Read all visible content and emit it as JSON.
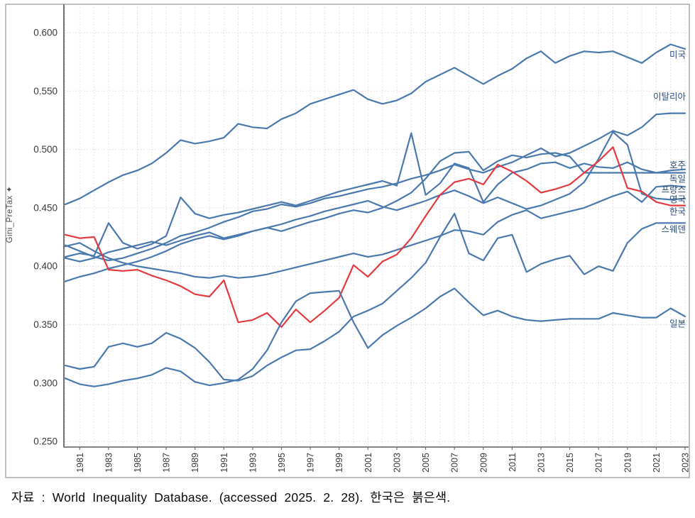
{
  "figure": {
    "caption": "자료 : World Inequality Database. (accessed 2025. 2. 28). 한국은 붉은색."
  },
  "chart_data": {
    "type": "line",
    "title": "",
    "xlabel": "",
    "ylabel": "Gini_PreTax ✦",
    "x_start": 1980,
    "x_end": 2023,
    "x_tick_years": [
      1981,
      1983,
      1985,
      1987,
      1989,
      1991,
      1993,
      1995,
      1997,
      1999,
      2001,
      2003,
      2005,
      2007,
      2009,
      2011,
      2013,
      2015,
      2017,
      2019,
      2021,
      2023
    ],
    "y_ticks": [
      "0.600",
      "0.550",
      "0.500",
      "0.450",
      "0.400",
      "0.350",
      "0.300",
      "0.250"
    ],
    "y_tick_values": [
      0.6,
      0.55,
      0.5,
      0.45,
      0.4,
      0.35,
      0.3,
      0.25
    ],
    "ylim": [
      0.25,
      0.615
    ],
    "grid": true,
    "legend_position": "inline-right-labels",
    "note": "한국은 붉은색",
    "colors": {
      "line_default": "#4b79ae",
      "line_korea": "#e23a3f",
      "series_label_text": "#2e4d7b",
      "axis_line": "#737373",
      "tick_text": "#3a3a3a",
      "grid_vertical": "#d6dcea",
      "grid_horizontal": "#e2d6d6",
      "figure_border": "#a0a4aa"
    },
    "series": [
      {
        "name": "미국",
        "color": "#4b79ae",
        "label_y": 0.581,
        "values": [
          0.453,
          0.458,
          0.465,
          0.472,
          0.478,
          0.482,
          0.488,
          0.497,
          0.508,
          0.505,
          0.507,
          0.51,
          0.522,
          0.519,
          0.518,
          0.526,
          0.531,
          0.539,
          0.543,
          0.547,
          0.551,
          0.543,
          0.539,
          0.542,
          0.548,
          0.558,
          0.564,
          0.57,
          0.563,
          0.556,
          0.563,
          0.569,
          0.578,
          0.584,
          0.574,
          0.58,
          0.584,
          0.583,
          0.584,
          0.579,
          0.574,
          0.583,
          0.59,
          0.586
        ]
      },
      {
        "name": "이탈리아",
        "color": "#4b79ae",
        "label_y": 0.545,
        "values": [
          0.418,
          0.413,
          0.408,
          0.405,
          0.407,
          0.411,
          0.415,
          0.42,
          0.426,
          0.429,
          0.433,
          0.438,
          0.442,
          0.447,
          0.449,
          0.453,
          0.451,
          0.454,
          0.458,
          0.46,
          0.463,
          0.466,
          0.468,
          0.471,
          0.475,
          0.478,
          0.482,
          0.487,
          0.483,
          0.48,
          0.485,
          0.489,
          0.495,
          0.501,
          0.494,
          0.497,
          0.503,
          0.509,
          0.516,
          0.512,
          0.519,
          0.53,
          0.531,
          0.531
        ]
      },
      {
        "name": "호주",
        "color": "#4b79ae",
        "label_y": 0.4865,
        "values": [
          0.408,
          0.411,
          0.409,
          0.437,
          0.42,
          0.415,
          0.419,
          0.426,
          0.459,
          0.445,
          0.441,
          0.444,
          0.446,
          0.449,
          0.452,
          0.455,
          0.452,
          0.456,
          0.46,
          0.464,
          0.467,
          0.47,
          0.473,
          0.469,
          0.514,
          0.461,
          0.471,
          0.488,
          0.484,
          0.455,
          0.47,
          0.48,
          0.483,
          0.488,
          0.489,
          0.484,
          0.488,
          0.485,
          0.484,
          0.489,
          0.483,
          0.48,
          0.482,
          0.483
        ]
      },
      {
        "name": "독일",
        "color": "#4b79ae",
        "label_y": 0.4745,
        "values": [
          0.407,
          0.404,
          0.407,
          0.412,
          0.415,
          0.418,
          0.421,
          0.418,
          0.422,
          0.426,
          0.429,
          0.424,
          0.427,
          0.43,
          0.433,
          0.43,
          0.434,
          0.438,
          0.441,
          0.445,
          0.448,
          0.446,
          0.45,
          0.456,
          0.463,
          0.475,
          0.49,
          0.497,
          0.498,
          0.482,
          0.49,
          0.495,
          0.493,
          0.496,
          0.497,
          0.494,
          0.48,
          0.48,
          0.48,
          0.48,
          0.48,
          0.48,
          0.48,
          0.48
        ]
      },
      {
        "name": "프랑스",
        "color": "#4b79ae",
        "label_y": 0.4655,
        "values": [
          0.417,
          0.42,
          0.413,
          0.407,
          0.403,
          0.4,
          0.398,
          0.396,
          0.394,
          0.391,
          0.39,
          0.392,
          0.39,
          0.391,
          0.393,
          0.396,
          0.399,
          0.402,
          0.405,
          0.408,
          0.411,
          0.408,
          0.41,
          0.414,
          0.418,
          0.422,
          0.426,
          0.431,
          0.43,
          0.427,
          0.438,
          0.444,
          0.448,
          0.441,
          0.444,
          0.447,
          0.45,
          0.455,
          0.46,
          0.464,
          0.455,
          0.468,
          0.469,
          0.468
        ]
      },
      {
        "name": "영국",
        "color": "#4b79ae",
        "label_y": 0.457,
        "values": [
          0.387,
          0.391,
          0.394,
          0.398,
          0.401,
          0.404,
          0.408,
          0.413,
          0.419,
          0.423,
          0.426,
          0.423,
          0.426,
          0.43,
          0.433,
          0.436,
          0.44,
          0.443,
          0.447,
          0.45,
          0.453,
          0.456,
          0.451,
          0.448,
          0.452,
          0.456,
          0.461,
          0.465,
          0.46,
          0.454,
          0.459,
          0.454,
          0.449,
          0.452,
          0.457,
          0.462,
          0.472,
          0.492,
          0.515,
          0.504,
          0.462,
          0.458,
          0.457,
          0.458
        ]
      },
      {
        "name": "한국",
        "color": "#e23a3f",
        "label_y": 0.4465,
        "values": [
          0.427,
          0.424,
          0.425,
          0.397,
          0.396,
          0.397,
          0.392,
          0.388,
          0.383,
          0.376,
          0.374,
          0.388,
          0.352,
          0.354,
          0.36,
          0.348,
          0.363,
          0.352,
          0.362,
          0.373,
          0.401,
          0.391,
          0.404,
          0.41,
          0.424,
          0.443,
          0.461,
          0.472,
          0.475,
          0.47,
          0.487,
          0.481,
          0.473,
          0.463,
          0.466,
          0.47,
          0.48,
          0.49,
          0.502,
          0.467,
          0.464,
          0.455,
          0.452,
          0.452
        ]
      },
      {
        "name": "스웨덴",
        "color": "#4b79ae",
        "label_y": 0.4315,
        "values": [
          0.315,
          0.312,
          0.314,
          0.331,
          0.334,
          0.331,
          0.334,
          0.343,
          0.338,
          0.33,
          0.318,
          0.303,
          0.302,
          0.306,
          0.315,
          0.322,
          0.328,
          0.329,
          0.336,
          0.344,
          0.357,
          0.362,
          0.368,
          0.379,
          0.39,
          0.403,
          0.425,
          0.445,
          0.411,
          0.405,
          0.424,
          0.427,
          0.395,
          0.402,
          0.406,
          0.409,
          0.393,
          0.4,
          0.396,
          0.42,
          0.432,
          0.437,
          0.437,
          0.437
        ]
      },
      {
        "name": "일본",
        "color": "#4b79ae",
        "label_y": 0.3505,
        "values": [
          0.304,
          0.299,
          0.297,
          0.299,
          0.302,
          0.304,
          0.307,
          0.313,
          0.31,
          0.301,
          0.298,
          0.3,
          0.303,
          0.312,
          0.328,
          0.352,
          0.37,
          0.377,
          0.378,
          0.379,
          0.352,
          0.33,
          0.341,
          0.349,
          0.356,
          0.364,
          0.374,
          0.381,
          0.369,
          0.358,
          0.362,
          0.357,
          0.354,
          0.353,
          0.354,
          0.355,
          0.355,
          0.355,
          0.36,
          0.358,
          0.356,
          0.356,
          0.364,
          0.357
        ]
      }
    ]
  }
}
